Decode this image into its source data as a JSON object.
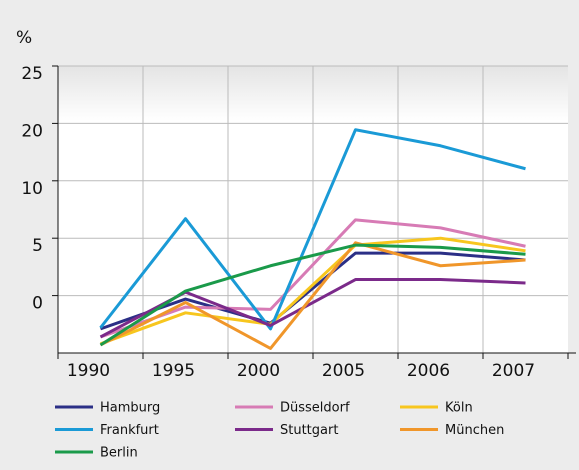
{
  "chart_data": {
    "type": "line",
    "y_unit": "%",
    "categories": [
      "1990",
      "1995",
      "2000",
      "2005",
      "2006",
      "2007"
    ],
    "ylim": [
      -5,
      25
    ],
    "yticks": [
      25,
      20,
      10,
      5,
      0
    ],
    "grid": true,
    "series": [
      {
        "name": "Hamburg",
        "color": "#2b2f86",
        "values": [
          -2.9,
          -0.3,
          -2.4,
          3.7,
          3.7,
          3.1
        ]
      },
      {
        "name": "Düsseldorf",
        "color": "#d77bb5",
        "values": [
          -3.6,
          -1.0,
          -1.2,
          6.6,
          5.9,
          4.3
        ]
      },
      {
        "name": "Köln",
        "color": "#f7c61e",
        "values": [
          -4.2,
          -1.5,
          -2.5,
          4.4,
          5.0,
          3.9
        ]
      },
      {
        "name": "Frankfurt",
        "color": "#1a9ad6",
        "values": [
          -2.8,
          6.7,
          -2.9,
          18.9,
          16.1,
          12.1
        ]
      },
      {
        "name": "Stuttgart",
        "color": "#7b2a8a",
        "values": [
          -3.6,
          0.3,
          -2.6,
          1.4,
          1.4,
          1.1
        ]
      },
      {
        "name": "München",
        "color": "#f0962a",
        "values": [
          -4.3,
          -0.6,
          -4.6,
          4.6,
          2.6,
          3.1
        ]
      },
      {
        "name": "Berlin",
        "color": "#1a9a4a",
        "values": [
          -4.3,
          0.4,
          2.6,
          4.4,
          4.2,
          3.6
        ]
      }
    ]
  }
}
